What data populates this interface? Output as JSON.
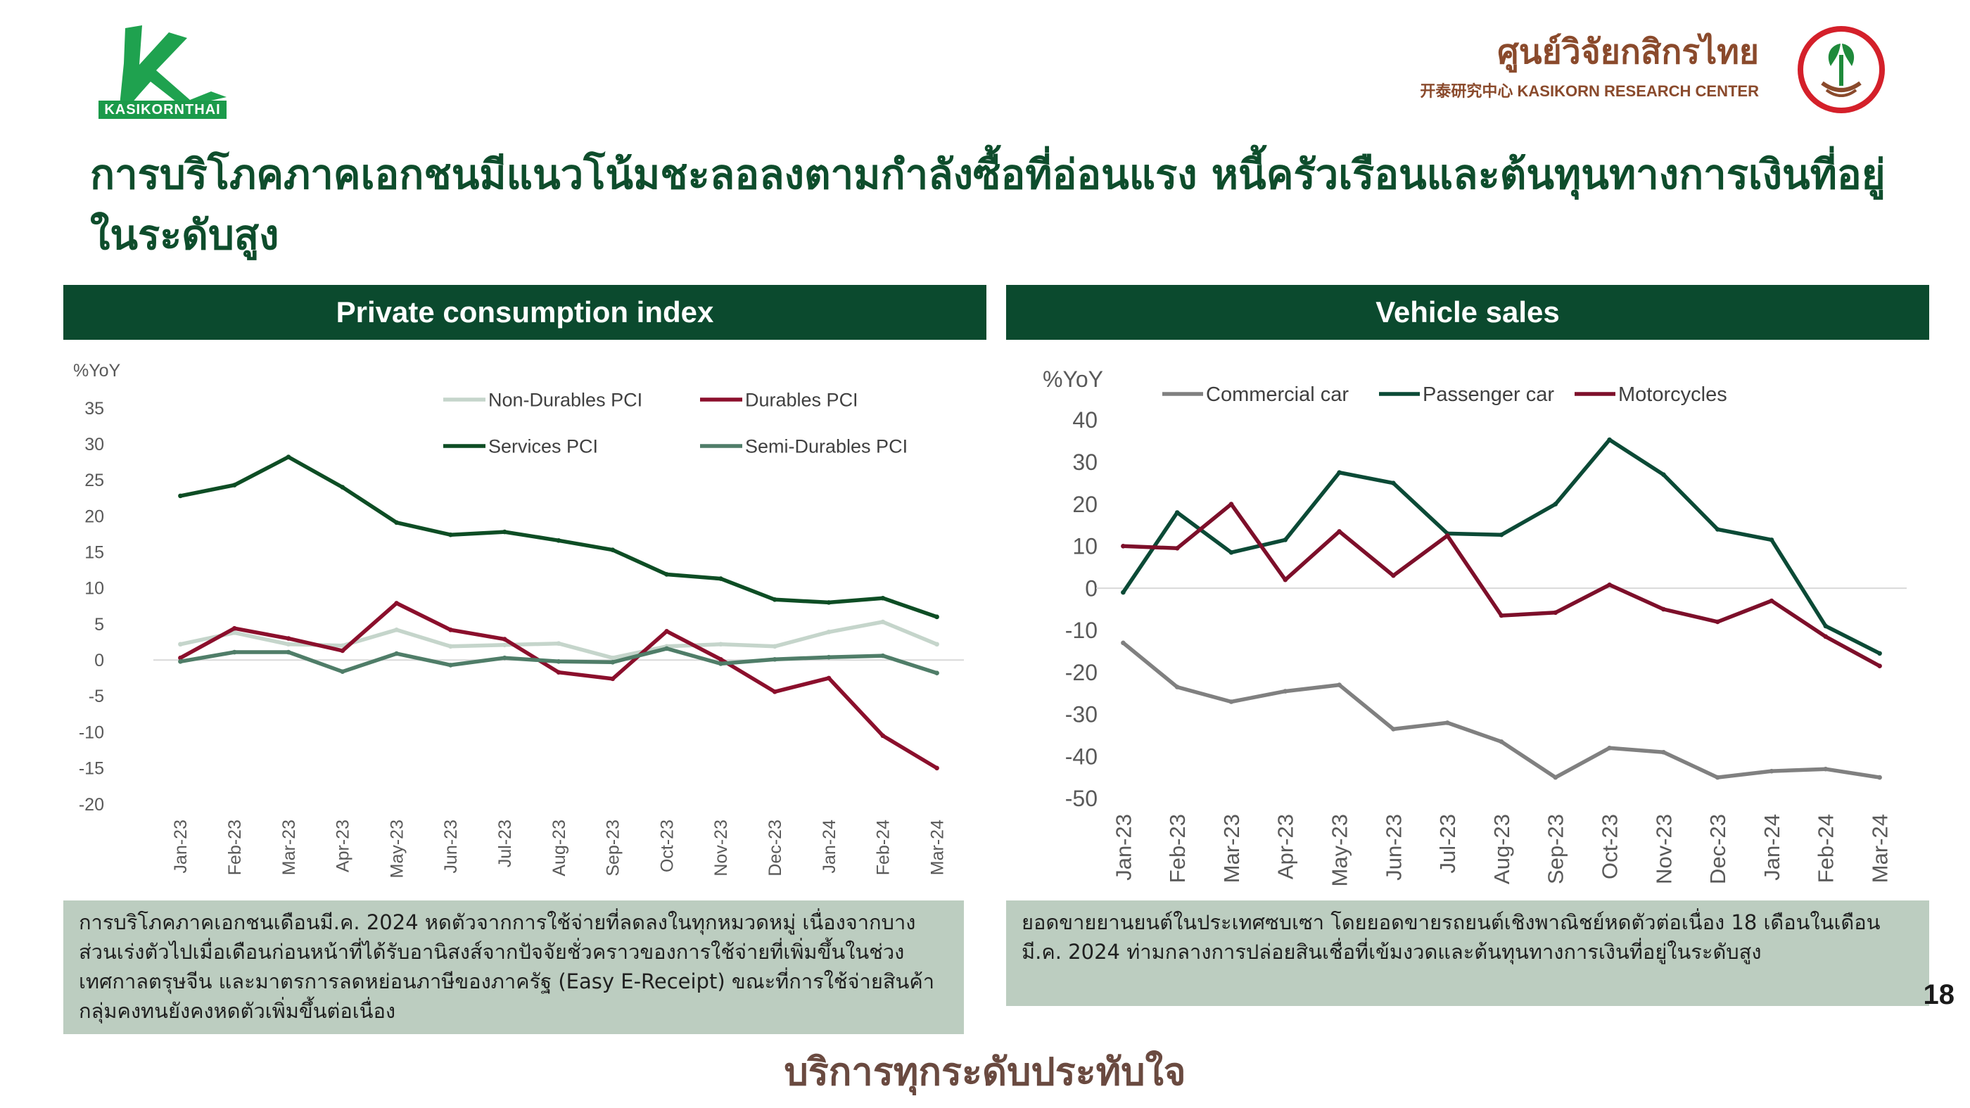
{
  "header": {
    "logo_left": "KASIKORNTHAI",
    "logo_right_thai": "ศูนย์วิจัยกสิกรไทย",
    "logo_right_eng": "开泰研究中心 KASIKORN RESEARCH CENTER",
    "title": "การบริโภคภาคเอกชนมีแนวโน้มชะลอลงตามกำลังซื้อที่อ่อนแรง หนี้ครัวเรือนและต้นทุนทางการเงินที่อยู่ในระดับสูง"
  },
  "colors": {
    "brand_green": "#0b4a2e",
    "note_bg": "#bccdc0"
  },
  "panels": {
    "left": {
      "heading": "Private consumption index",
      "note": "การบริโภคภาคเอกชนเดือนมี.ค. 2024 หดตัวจากการใช้จ่ายที่ลดลงในทุกหมวดหมู่ เนื่องจากบางส่วนเร่งตัวไปเมื่อเดือนก่อนหน้าที่ได้รับอานิสงส์จากปัจจัยชั่วคราวของการใช้จ่ายที่เพิ่มขึ้นในช่วงเทศกาลตรุษจีน และมาตรการลดหย่อนภาษีของภาครัฐ (Easy E-Receipt) ขณะที่การใช้จ่ายสินค้ากลุ่มคงทนยังคงหดตัวเพิ่มขึ้นต่อเนื่อง"
    },
    "right": {
      "heading": "Vehicle sales",
      "note": "ยอดขายยานยนต์ในประเทศซบเซา โดยยอดขายรถยนต์เชิงพาณิชย์หดตัวต่อเนื่อง 18 เดือนในเดือนมี.ค. 2024 ท่ามกลางการปล่อยสินเชื่อที่เข้มงวดและต้นทุนทางการเงินที่อยู่ในระดับสูง"
    }
  },
  "page_number": "18",
  "slogan": "บริการทุกระดับประทับใจ",
  "chart_data": [
    {
      "type": "line",
      "title": "Private consumption index",
      "ylabel": "%YoY",
      "ylim": [
        -20,
        35
      ],
      "yticks": [
        35,
        30,
        25,
        20,
        15,
        10,
        5,
        0,
        -5,
        -10,
        -15,
        -20
      ],
      "grid": false,
      "legend": "top",
      "categories": [
        "Jan-23",
        "Feb-23",
        "Mar-23",
        "Apr-23",
        "May-23",
        "Jun-23",
        "Jul-23",
        "Aug-23",
        "Sep-23",
        "Oct-23",
        "Nov-23",
        "Dec-23",
        "Jan-24",
        "Feb-24",
        "Mar-24"
      ],
      "series": [
        {
          "name": "Non-Durables PCI",
          "color": "#c5d5cb",
          "values": [
            2.2,
            3.8,
            2.2,
            2.0,
            4.2,
            1.9,
            2.1,
            2.3,
            0.3,
            1.9,
            2.2,
            1.9,
            3.9,
            5.3,
            2.2
          ]
        },
        {
          "name": "Durables PCI",
          "color": "#8b0f2c",
          "values": [
            0.3,
            4.4,
            3.0,
            1.3,
            7.9,
            4.2,
            2.9,
            -1.7,
            -2.6,
            4.0,
            0.1,
            -4.4,
            -2.5,
            -10.5,
            -15.0
          ]
        },
        {
          "name": "Services PCI",
          "color": "#0d4d24",
          "values": [
            22.8,
            24.3,
            28.2,
            24.0,
            19.1,
            17.4,
            17.8,
            16.6,
            15.3,
            11.9,
            11.3,
            8.4,
            8.0,
            8.6,
            6.0
          ]
        },
        {
          "name": "Semi-Durables PCI",
          "color": "#4f7d68",
          "values": [
            -0.2,
            1.1,
            1.1,
            -1.6,
            0.9,
            -0.7,
            0.3,
            -0.2,
            -0.3,
            1.6,
            -0.5,
            0.1,
            0.4,
            0.6,
            -1.8
          ]
        }
      ]
    },
    {
      "type": "line",
      "title": "Vehicle sales",
      "ylabel": "%YoY",
      "ylim": [
        -50,
        40
      ],
      "yticks": [
        40,
        30,
        20,
        10,
        0,
        -10,
        -20,
        -30,
        -40,
        -50
      ],
      "grid": false,
      "legend": "top",
      "categories": [
        "Jan-23",
        "Feb-23",
        "Mar-23",
        "Apr-23",
        "May-23",
        "Jun-23",
        "Jul-23",
        "Aug-23",
        "Sep-23",
        "Oct-23",
        "Nov-23",
        "Dec-23",
        "Jan-24",
        "Feb-24",
        "Mar-24"
      ],
      "series": [
        {
          "name": "Commercial car",
          "color": "#808080",
          "values": [
            -13,
            -23.5,
            -27,
            -24.5,
            -23,
            -33.5,
            -32,
            -36.5,
            -45,
            -38,
            -39,
            -45,
            -43.5,
            -43,
            -45
          ]
        },
        {
          "name": "Passenger car",
          "color": "#0b4a36",
          "values": [
            -1,
            18,
            8.5,
            11.5,
            27.5,
            25,
            13,
            12.7,
            20,
            35.3,
            27,
            14,
            11.5,
            -9,
            -15.5
          ]
        },
        {
          "name": "Motorcycles",
          "color": "#7d0f2a",
          "values": [
            10,
            9.5,
            20,
            2,
            13.5,
            3,
            12.5,
            -6.5,
            -5.8,
            0.8,
            -5,
            -8,
            -3,
            -11.5,
            -18.5
          ]
        }
      ]
    }
  ]
}
